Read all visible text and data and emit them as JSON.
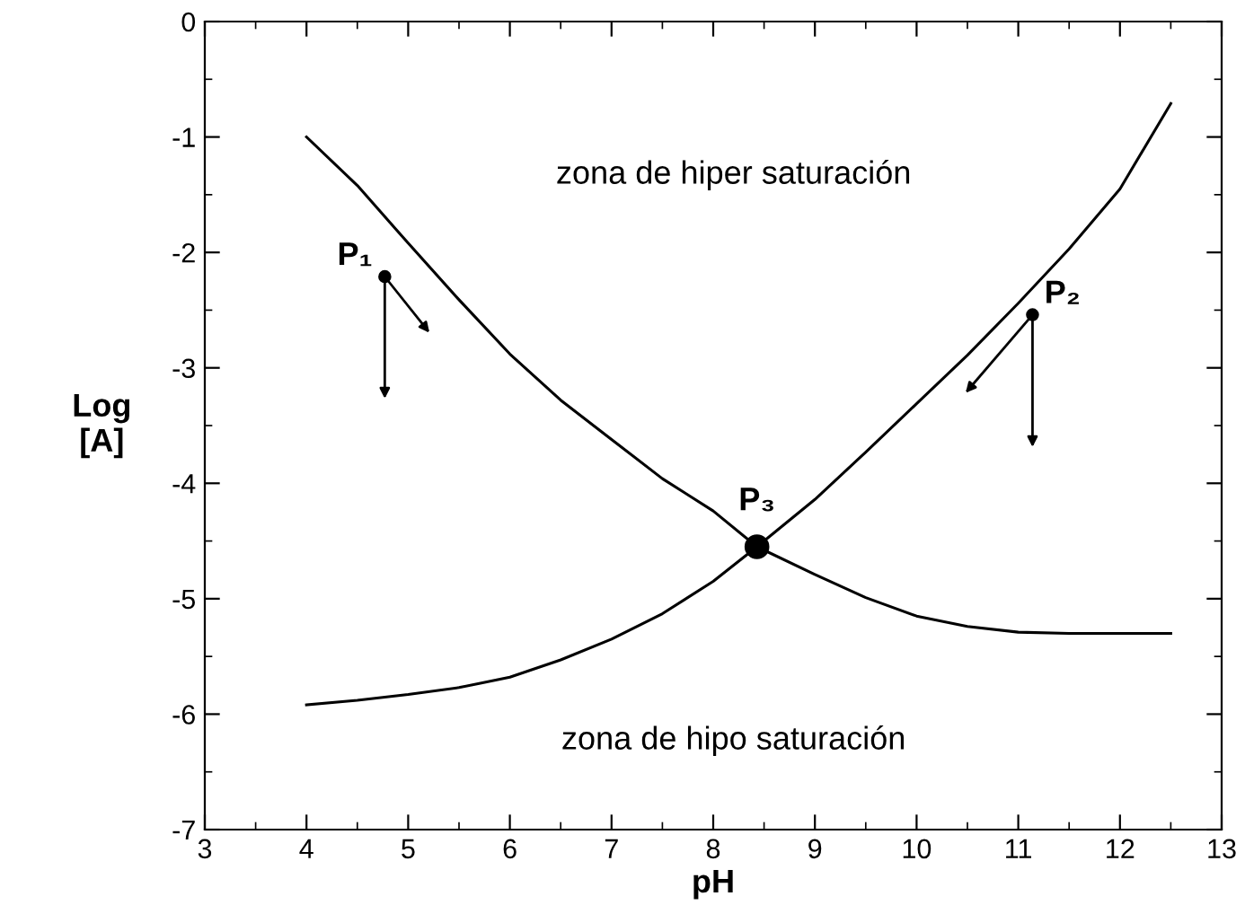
{
  "chart_data": {
    "type": "line",
    "xlabel": "pH",
    "ylabel": "Log\n[A]",
    "xlim": [
      3,
      13
    ],
    "ylim": [
      -7,
      0
    ],
    "xticks": [
      3,
      4,
      5,
      6,
      7,
      8,
      9,
      10,
      11,
      12,
      13
    ],
    "yticks": [
      -7,
      -6,
      -5,
      -4,
      -3,
      -2,
      -1,
      0
    ],
    "grid": false,
    "marker": "none",
    "line_style": "solid",
    "series": [
      {
        "color": "#000000",
        "x": [
          4,
          4.5,
          5,
          5.5,
          6,
          6.5,
          7,
          7.5,
          8,
          8.43,
          9,
          9.5,
          10,
          10.5,
          11,
          11.5,
          12.5
        ],
        "values": [
          -1.0,
          -1.42,
          -1.92,
          -2.41,
          -2.88,
          -3.28,
          -3.62,
          -3.96,
          -4.24,
          -4.55,
          -4.79,
          -4.99,
          -5.15,
          -5.24,
          -5.29,
          -5.3,
          -5.3
        ]
      },
      {
        "color": "#000000",
        "x": [
          4,
          4.5,
          5,
          5.5,
          6,
          6.5,
          7,
          7.5,
          8,
          8.43,
          9,
          9.5,
          10,
          10.5,
          11,
          11.5,
          12,
          12.5
        ],
        "values": [
          -5.92,
          -5.88,
          -5.83,
          -5.77,
          -5.68,
          -5.53,
          -5.35,
          -5.13,
          -4.85,
          -4.55,
          -4.14,
          -3.73,
          -3.31,
          -2.89,
          -2.44,
          -1.97,
          -1.45,
          -0.71
        ]
      },
      {
        "type": "scatter",
        "marker": "circle",
        "color": "#000000",
        "x": [
          4.77,
          11.14
        ],
        "values": [
          -2.21,
          -2.54
        ]
      },
      {
        "type": "scatter",
        "marker": "circle",
        "color": "#000000",
        "x": [
          8.43
        ],
        "values": [
          -4.55
        ]
      }
    ],
    "annotations": [
      {
        "text": "P₁",
        "x": 4.77,
        "y": -2.21
      },
      {
        "text": "P₂",
        "x": 11.14,
        "y": -2.54
      },
      {
        "text": "P₃",
        "x": 8.43,
        "y": -4.55
      },
      "zona de hiper saturación",
      "zona de hipo saturación"
    ]
  }
}
